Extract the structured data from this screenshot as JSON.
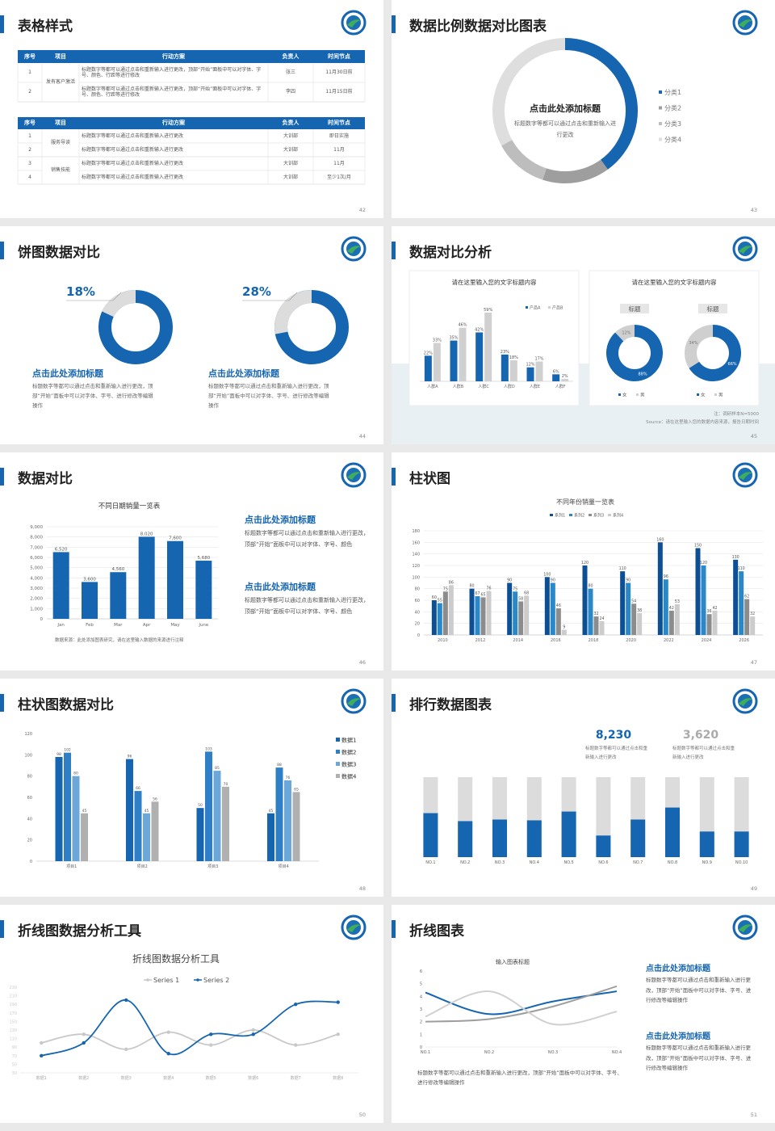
{
  "slides": [
    {
      "title": "表格样式",
      "page": "42",
      "tables": [
        {
          "header": [
            "序号",
            "项目",
            "行动方案",
            "负责人",
            "时间节点"
          ],
          "groups": [
            {
              "name": "发有客户激活",
              "rows": [
                [
                  "1",
                  "标题数字等都可以通过点击和重新输入进行更改，顶部“开始”面板中可以对字体、字号、颜色、行距等进行修改",
                  "张三",
                  "11月30日前"
                ],
                [
                  "2",
                  "标题数字等都可以通过点击和重新输入进行更改，顶部“开始”面板中可以对字体、字号、颜色、行距等进行修改",
                  "李四",
                  "11月15日前"
                ]
              ]
            }
          ]
        },
        {
          "header": [
            "序号",
            "项目",
            "行动方案",
            "负责人",
            "时间节点"
          ],
          "groups": [
            {
              "name": "服务导读",
              "rows": [
                [
                  "1",
                  "标题数字等都可以通过点击和重新输入进行更改",
                  "大训部",
                  "即日实施"
                ],
                [
                  "2",
                  "标题数字等都可以通过点击和重新输入进行更改",
                  "大训部",
                  "11月"
                ]
              ]
            },
            {
              "name": "销售技能",
              "rows": [
                [
                  "3",
                  "标题数字等都可以通过点击和重新输入进行更改",
                  "大训部",
                  "11月"
                ],
                [
                  "4",
                  "标题数字等都可以通过点击和重新输入进行更改",
                  "大训部",
                  "至少1次/月"
                ]
              ]
            }
          ]
        }
      ]
    },
    {
      "title": "数据比例数据对比图表",
      "page": "43",
      "heading": "点击此处添加标题",
      "text": "标题数字等都可以通过点击和重新输入进行更改",
      "chart": {
        "type": "donut",
        "categories": [
          "分类1",
          "分类2",
          "分类3",
          "分类4"
        ],
        "values": [
          40,
          15,
          12,
          33
        ],
        "colors": [
          "#1565b0",
          "#9e9e9e",
          "#bdbdbd",
          "#dedede"
        ]
      }
    },
    {
      "title": "饼图数据对比",
      "page": "44",
      "items": [
        {
          "chart": {
            "type": "donut",
            "values": [
              18
            ],
            "value_labels": [
              "18%"
            ],
            "color": "#dcdcdc",
            "track_color": "#1565b0"
          },
          "heading": "点击此处添加标题",
          "text": "标题数字等都可以通过点击和重新输入进行更改，顶部“开始”面板中可以对字体、字号、进行修改等编辑操作"
        },
        {
          "chart": {
            "type": "donut",
            "values": [
              28
            ],
            "value_labels": [
              "28%"
            ],
            "color": "#dcdcdc",
            "track_color": "#1565b0"
          },
          "heading": "点击此处添加标题",
          "text": "标题数字等都可以通过点击和重新输入进行更改，顶部“开始”面板中可以对字体、字号、进行修改等编辑操作"
        }
      ]
    },
    {
      "title": "数据对比分析",
      "page": "45",
      "bar_card": {
        "chart": {
          "type": "bar",
          "title": "请在这里输入您的文字标题内容",
          "categories": [
            "人群A",
            "人群B",
            "人群C",
            "人群D",
            "人群E",
            "人群F"
          ],
          "series": [
            {
              "name": "产品A",
              "color": "#1565b0",
              "values": [
                22,
                35,
                42,
                23,
                12,
                6
              ],
              "value_labels": [
                "22%",
                "35%",
                "42%",
                "23%",
                "12%",
                "6%"
              ]
            },
            {
              "name": "产品B",
              "color": "#d0d0d0",
              "values": [
                33,
                46,
                59,
                18,
                17,
                2
              ],
              "value_labels": [
                "33%",
                "46%",
                "59%",
                "18%",
                "17%",
                "2%"
              ]
            }
          ]
        }
      },
      "donut_card": {
        "title": "请在这里输入您的文字标题内容",
        "charts": [
          {
            "type": "donut",
            "title": "标题",
            "categories": [
              "女",
              "男"
            ],
            "colors": [
              "#1565b0",
              "#cfcfcf"
            ],
            "values": [
              88,
              12
            ],
            "value_labels": [
              "88%",
              "12%"
            ]
          },
          {
            "type": "donut",
            "title": "标题",
            "categories": [
              "女",
              "男"
            ],
            "colors": [
              "#1565b0",
              "#cfcfcf"
            ],
            "values": [
              66,
              34
            ],
            "value_labels": [
              "66%",
              "34%"
            ]
          }
        ]
      },
      "notes": [
        "注：调研样本N=5000",
        "Source：请在这里输入您的数据内容来源，报告日期时间"
      ]
    },
    {
      "title": "数据对比",
      "page": "46",
      "chart": {
        "type": "bar",
        "title": "不同日期销量一览表",
        "categories": [
          "Jan",
          "Feb",
          "Mar",
          "Apr",
          "May",
          "June"
        ],
        "values": [
          6520,
          3600,
          4560,
          8020,
          7600,
          5680
        ],
        "value_labels": [
          "6,520",
          "3,600",
          "4,560",
          "8,020",
          "7,600",
          "5,680"
        ],
        "color": "#1565b0",
        "ylim": [
          0,
          9000
        ],
        "yticks": [
          0,
          {
            "value": 1000,
            "label": "1,000"
          },
          {
            "value": 2000,
            "label": "2,000"
          },
          {
            "value": 3000,
            "label": "3,000"
          },
          {
            "value": 4000,
            "label": "4,000"
          },
          {
            "value": 5000,
            "label": "5,000"
          },
          {
            "value": 6000,
            "label": "6,000"
          },
          {
            "value": 7000,
            "label": "7,000"
          },
          {
            "value": 8000,
            "label": "8,000"
          },
          {
            "value": 9000,
            "label": "9,000"
          }
        ],
        "grid": true
      },
      "source": "数据来源：此处添加图表研究，请在这里输入数据的来源进行注释",
      "blocks": [
        {
          "heading": "点击此处添加标题",
          "text": "标题数字等都可以通过点击和重新输入进行更改，顶部“开始”面板中可以对字体、字号、颜色"
        },
        {
          "heading": "点击此处添加标题",
          "text": "标题数字等都可以通过点击和重新输入进行更改，顶部“开始”面板中可以对字体、字号、颜色"
        }
      ]
    },
    {
      "title": "柱状图",
      "page": "47",
      "chart": {
        "type": "bar",
        "title": "不同年份销量一览表",
        "categories": [
          "2010",
          "2012",
          "2014",
          "2016",
          "2018",
          "2020",
          "2022",
          "2024",
          "2026"
        ],
        "series": [
          {
            "name": "系列1",
            "color": "#0d4f95",
            "values": [
              60,
              80,
              90,
              100,
              120,
              110,
              160,
              150,
              130
            ]
          },
          {
            "name": "系列2",
            "color": "#2a88c9",
            "values": [
              55,
              67,
              75,
              90,
              80,
              90,
              96,
              120,
              110
            ]
          },
          {
            "name": "系列3",
            "color": "#8c8c8c",
            "values": [
              75,
              65,
              58,
              46,
              32,
              54,
              42,
              36,
              62
            ]
          },
          {
            "name": "系列4",
            "color": "#cccccc",
            "values": [
              86,
              76,
              68,
              9,
              24,
              38,
              53,
              42,
              32
            ]
          }
        ],
        "ylim": [
          0,
          180
        ],
        "yticks": [
          0,
          20,
          40,
          60,
          80,
          100,
          120,
          140,
          160,
          180
        ],
        "grid": true
      }
    },
    {
      "title": "柱状图数据对比",
      "page": "48",
      "chart": {
        "type": "bar",
        "categories": [
          "项目1",
          "项目2",
          "项目3",
          "项目4"
        ],
        "series": [
          {
            "name": "数据1",
            "color": "#1565b0",
            "values": [
              98,
              96,
              50,
              45
            ]
          },
          {
            "name": "数据2",
            "color": "#2f7fc7",
            "values": [
              102,
              66,
              103,
              88
            ]
          },
          {
            "name": "数据3",
            "color": "#6ba7d8",
            "values": [
              80,
              45,
              85,
              76
            ]
          },
          {
            "name": "数据4",
            "color": "#b0b0b0",
            "values": [
              45,
              56,
              70,
              65
            ]
          }
        ],
        "ylim": [
          0,
          120
        ],
        "yticks": [
          0,
          20,
          40,
          60,
          80,
          100,
          120
        ]
      }
    },
    {
      "title": "排行数据图表",
      "page": "49",
      "stats": [
        {
          "value": "8,230",
          "text": "标题数字等都可以通过点击和重新输入进行更改"
        },
        {
          "value": "3,620",
          "text": "标题数字等都可以通过点击和重新输入进行更改"
        }
      ],
      "chart": {
        "type": "bar",
        "categories": [
          "NO.1",
          "NO.2",
          "NO.3",
          "NO.4",
          "NO.5",
          "NO.6",
          "NO.7",
          "NO.8",
          "NO.9",
          "NO.10"
        ],
        "values": [
          55,
          45,
          47,
          46,
          57,
          27,
          47,
          62,
          32,
          32
        ],
        "ylim": [
          0,
          100
        ],
        "color": "#1565b0",
        "track_color": "#dcdcdc"
      }
    },
    {
      "title": "折线图数据分析工具",
      "page": "50",
      "chart": {
        "type": "line",
        "title": "折线图数据分析工具",
        "categories": [
          "数据1",
          "数据2",
          "数据3",
          "数据4",
          "数据5",
          "数据6",
          "数据7",
          "数据8"
        ],
        "series": [
          {
            "name": "Series 1",
            "color": "#c8c8c8",
            "values": [
              100,
              120,
              85,
              125,
              95,
              130,
              95,
              120
            ]
          },
          {
            "name": "Series 2",
            "color": "#1565b0",
            "values": [
              70,
              100,
              200,
              75,
              120,
              120,
              190,
              195
            ]
          }
        ],
        "ylim": [
          30,
          230
        ],
        "yticks": [
          30,
          50,
          70,
          90,
          110,
          130,
          150,
          170,
          190,
          210,
          230
        ]
      }
    },
    {
      "title": "折线图表",
      "page": "51",
      "chart": {
        "type": "line",
        "title": "输入图表标题",
        "categories": [
          "NO.1",
          "NO.2",
          "NO.3",
          "NO.4"
        ],
        "series": [
          {
            "color": "#1565b0",
            "values": [
              4.3,
              2.6,
              3.6,
              4.4
            ]
          },
          {
            "color": "#9e9e9e",
            "values": [
              2.0,
              2.2,
              3.2,
              4.8
            ]
          },
          {
            "color": "#d0d0d0",
            "values": [
              2.4,
              4.4,
              1.8,
              2.8
            ]
          }
        ],
        "ylim": [
          0,
          6
        ],
        "yticks": [
          0,
          1,
          2,
          3,
          4,
          5,
          6
        ]
      },
      "text": "标题数字等都可以通过点击和重新输入进行更改，顶部“开始”面板中可以对字体、字号、进行修改等编辑操作",
      "blocks": [
        {
          "heading": "点击此处添加标题",
          "text": "标题数字等都可以通过点击和重新输入进行更改，顶部“开始”面板中可以对字体、字号、进行修改等编辑操作"
        },
        {
          "heading": "点击此处添加标题",
          "text": "标题数字等都可以通过点击和重新输入进行更改，顶部“开始”面板中可以对字体、字号、进行修改等编辑操作"
        }
      ]
    }
  ]
}
